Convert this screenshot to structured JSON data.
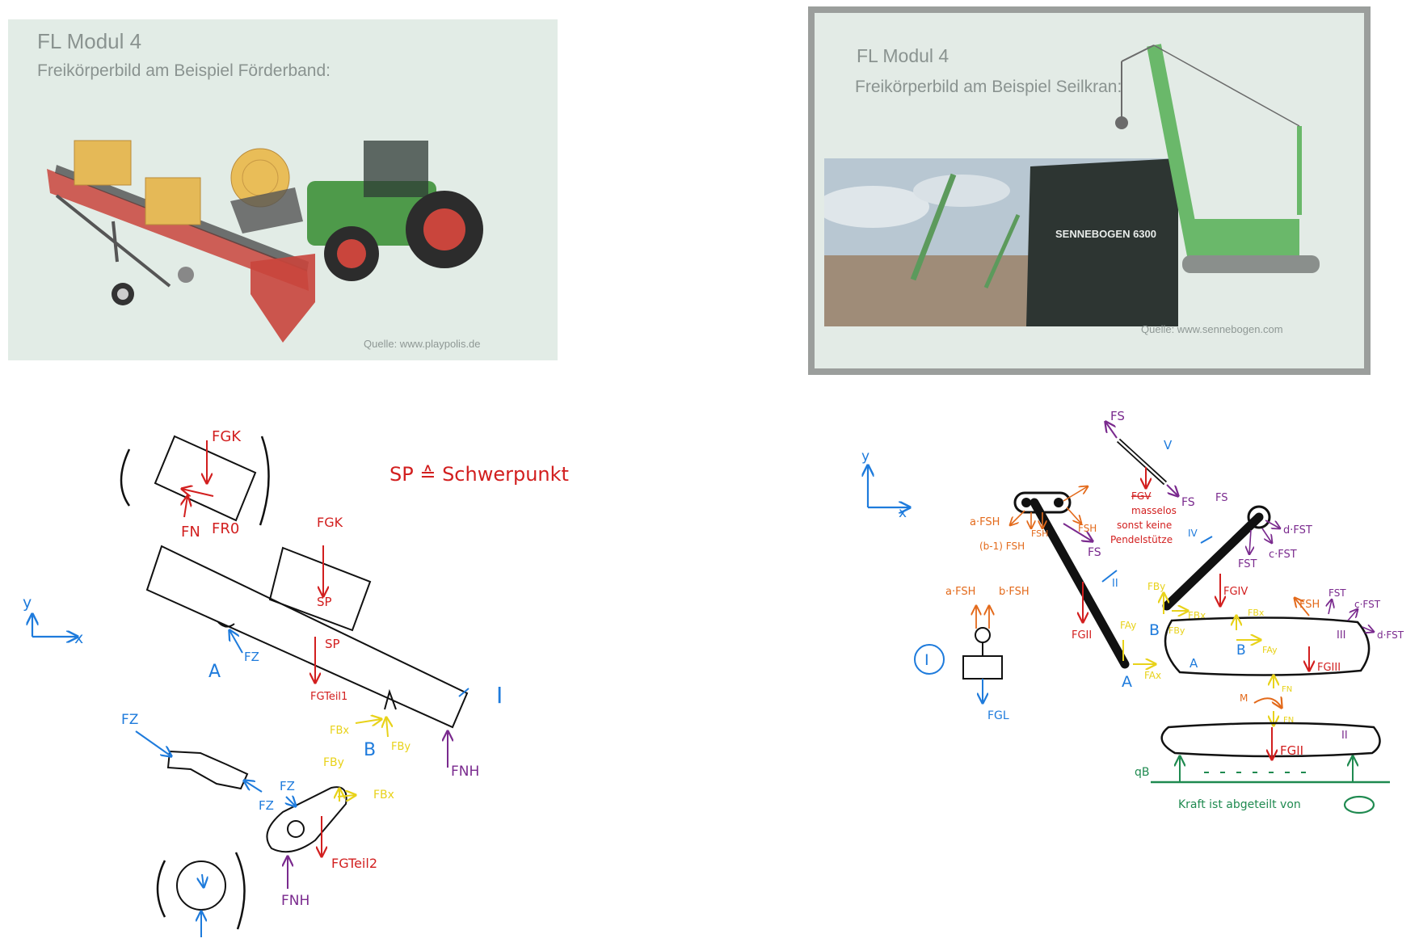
{
  "slide_left": {
    "title": "FL Modul 4",
    "subtitle": "Freikörperbild am Beispiel Förderband:",
    "source": "Quelle: www.playpolis.de"
  },
  "slide_right": {
    "title": "FL Modul 4",
    "subtitle": "Freikörperbild am Beispiel Seilkran:",
    "photo_label": "SENNEBOGEN 6300",
    "source": "Quelle: www.sennebogen.com"
  },
  "sketch_left": {
    "F_GK_top": "FGK",
    "F_N": "FN",
    "F_R0": "FR0",
    "legend": "SP ≙ Schwerpunkt",
    "F_GK_mid": "FGK",
    "SP1": "SP",
    "SP2": "SP",
    "F_GTeil1": "FGTeil1",
    "F_Z1": "FZ",
    "label_A": "A",
    "label_B": "B",
    "F_Bx": "FBx",
    "F_By": "FBy",
    "F_NH": "FNH",
    "part_I": "I",
    "axis_y": "y",
    "axis_x": "x",
    "F_Z_a": "FZ",
    "F_Z_b": "FZ",
    "F_Z_c": "FZ",
    "F_By2": "FBy",
    "F_Bx2": "FBx",
    "F_GTeil2": "FGTeil2",
    "F_NH2": "FNH"
  },
  "sketch_right": {
    "axis_y": "y",
    "axis_x": "x",
    "F_S_top": "FS",
    "part_V": "V",
    "F_S_right": "FS",
    "crossed": "FGV",
    "note_masselos": "masselos",
    "note_sonst": "sonst keine",
    "note_pendel": "Pendelstütze",
    "aFSH": "a·FSH",
    "FSH_1": "FSH",
    "FSH_2": "FSH",
    "b1FSH": "(b-1) FSH",
    "FS_left": "FS",
    "part_IV": "IV",
    "FS_c": "FS",
    "dFST": "d·FST",
    "cFST": "c·FST",
    "FST_1": "FST",
    "part_II": "II",
    "FGII": "FGII",
    "FGIV": "FGIV",
    "aFSH2": "a·FSH",
    "bFSH": "b·FSH",
    "part_I": "I",
    "FGL": "FGL",
    "FBy": "FBy",
    "FBx": "FBx",
    "label_B": "B",
    "FAy": "FAy",
    "label_A": "A",
    "FAx": "FAx",
    "FBy2": "FBy",
    "FBx2": "FBx",
    "label_B2": "B",
    "FAy2": "FAy",
    "label_A2": "A",
    "FSH_3": "FSH",
    "FST_2": "FST",
    "cFST2": "c·FST",
    "dFST2": "d·FST",
    "part_III": "III",
    "FGIII": "FGIII",
    "FN1": "FN",
    "FN2": "FN",
    "M": "M",
    "part_II_body": "II",
    "FGII_body": "FGII",
    "qB": "qB",
    "kraft_note": "Kraft ist abgeteilt von"
  }
}
